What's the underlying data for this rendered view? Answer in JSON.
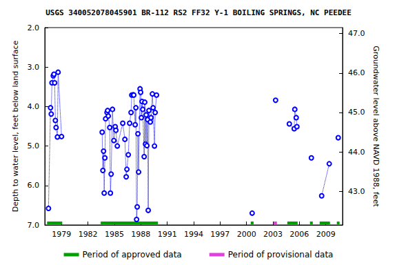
{
  "chart_data": {
    "type": "line",
    "title": "USGS 340052078045901 BR-112 RS2 FF32 Y-1 BOILING SPRINGS, NC PEEDEE",
    "y_label": "Depth to water level, feet below land surface",
    "y2_label": "Groundwater level above NAVD 1988, feet",
    "color": "#0000ff",
    "marker": "circle",
    "line_style": "dotted",
    "grid": false,
    "legend": "bottom",
    "x": [
      1977.52,
      1977.75,
      1977.83,
      1977.91,
      1978.06,
      1978.14,
      1978.22,
      1978.3,
      1978.38,
      1978.53,
      1978.61,
      1979.0,
      null,
      1983.61,
      1983.69,
      1983.77,
      1983.84,
      1983.92,
      1984.0,
      1984.16,
      1984.23,
      1984.31,
      1984.47,
      1984.55,
      1984.63,
      1984.78,
      1984.94,
      1985.09,
      1985.17,
      1985.33,
      1985.95,
      1986.19,
      1986.34,
      1986.42,
      1986.58,
      1986.73,
      1986.89,
      1986.97,
      1987.13,
      1987.2,
      1987.36,
      1987.44,
      1987.52,
      1987.59,
      1987.67,
      1987.75,
      1987.91,
      1987.98,
      1988.06,
      1988.14,
      1988.22,
      1988.38,
      1988.45,
      1988.53,
      1988.61,
      1988.69,
      1988.77,
      1988.84,
      1988.92,
      1989.08,
      1989.16,
      1989.31,
      1989.39,
      1989.55,
      1989.63,
      1989.78,
      null,
      2000.64,
      null,
      2003.3,
      null,
      2004.86,
      2005.41,
      2005.48,
      2005.64,
      2005.72,
      null,
      2007.36,
      null,
      2008.53,
      2009.39,
      null,
      2010.41
    ],
    "values": [
      6.58,
      4.03,
      4.19,
      3.4,
      3.22,
      3.18,
      3.4,
      4.35,
      4.53,
      4.77,
      3.13,
      4.76,
      null,
      4.65,
      5.62,
      5.13,
      6.19,
      5.3,
      4.31,
      4.15,
      4.1,
      4.24,
      4.53,
      6.19,
      5.71,
      4.07,
      4.86,
      4.51,
      4.6,
      5.0,
      4.42,
      4.83,
      5.78,
      5.59,
      5.22,
      4.42,
      4.15,
      3.71,
      3.7,
      3.71,
      4.46,
      4.03,
      6.86,
      6.54,
      4.69,
      5.66,
      3.55,
      3.64,
      4.28,
      3.87,
      4.07,
      5.27,
      3.89,
      4.95,
      4.21,
      4.99,
      4.33,
      6.63,
      4.1,
      4.39,
      4.28,
      3.68,
      4.03,
      5.0,
      4.15,
      3.71,
      null,
      6.7,
      null,
      3.84,
      null,
      4.44,
      4.56,
      4.07,
      4.28,
      4.51,
      null,
      5.3,
      null,
      6.26,
      5.45,
      null,
      4.79
    ],
    "xlim": [
      1977.1,
      2010.9
    ],
    "xticks": [
      1979,
      1982,
      1985,
      1988,
      1991,
      1994,
      1997,
      2000,
      2003,
      2006,
      2009
    ],
    "ylim": [
      2.0,
      7.0
    ],
    "yticks": [
      {
        "value": 2,
        "label": "2.0"
      },
      {
        "value": 3,
        "label": "3.0"
      },
      {
        "value": 4,
        "label": "4.0"
      },
      {
        "value": 5,
        "label": "5.0"
      },
      {
        "value": 6,
        "label": "6.0"
      },
      {
        "value": 7,
        "label": "7.0"
      }
    ],
    "y2lim": [
      42.15,
      47.15
    ],
    "y2ticks": [
      {
        "value": 43,
        "label": "43.0"
      },
      {
        "value": 44,
        "label": "44.0"
      },
      {
        "value": 45,
        "label": "45.0"
      },
      {
        "value": 46,
        "label": "46.0"
      },
      {
        "value": 47,
        "label": "47.0"
      }
    ],
    "periods": [
      {
        "name": "Period of approved data",
        "color": "#00a000",
        "ranges": [
          [
            1977.36,
            1979.08
          ],
          [
            1983.45,
            1989.94
          ],
          [
            2000.48,
            2000.8
          ],
          [
            2004.63,
            2005.8
          ],
          [
            2007.2,
            2007.52
          ],
          [
            2008.3,
            2009.47
          ],
          [
            2010.25,
            2010.56
          ]
        ]
      },
      {
        "name": "Period of provisional data",
        "color": "#e040e0",
        "ranges": [
          [
            2003.06,
            2003.45
          ]
        ]
      }
    ]
  }
}
